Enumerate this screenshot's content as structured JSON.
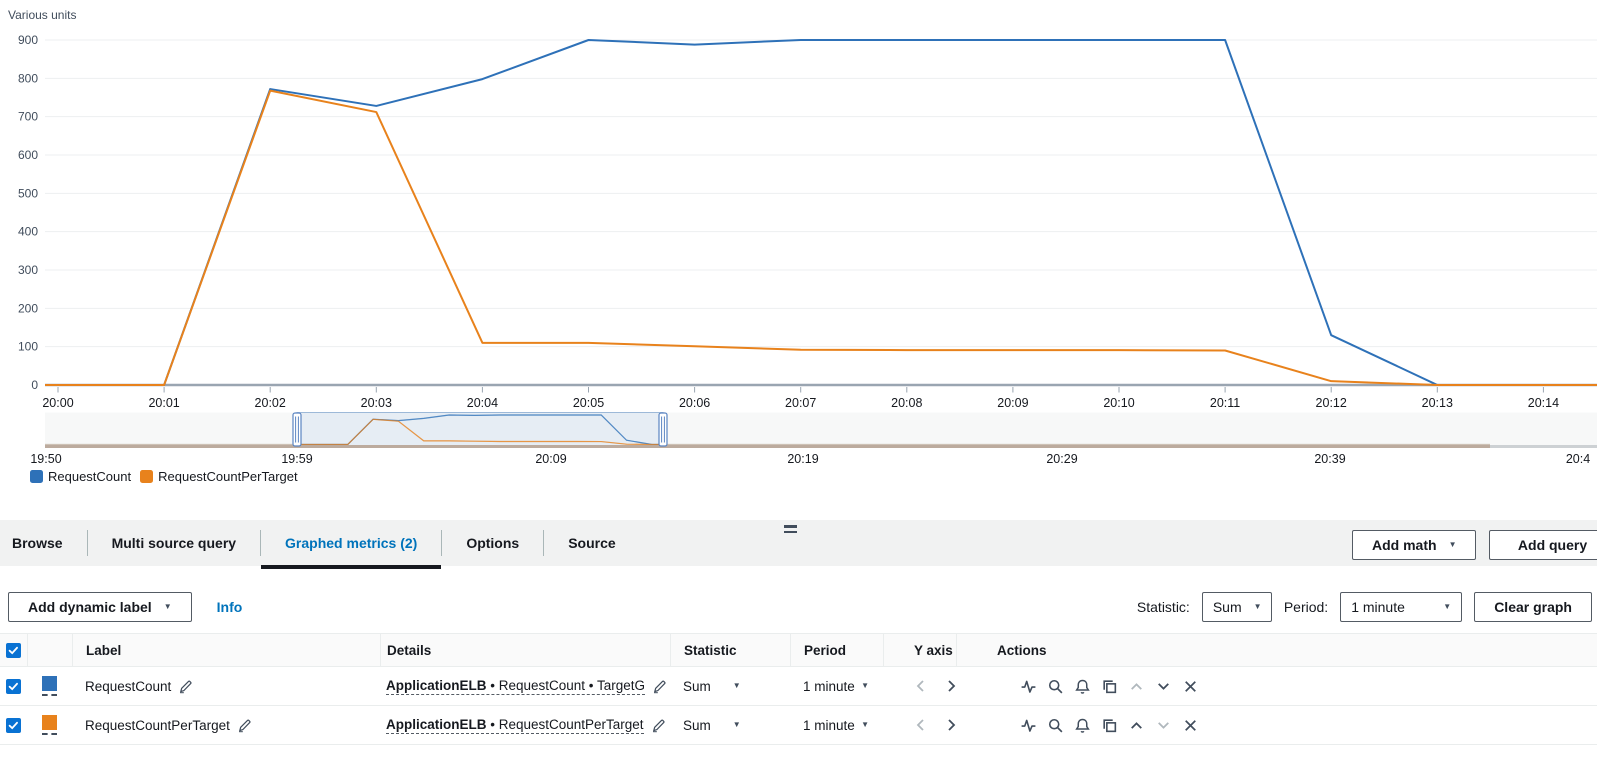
{
  "chart": {
    "units_label": "Various units"
  },
  "chart_data": {
    "type": "line",
    "title": "",
    "xlabel": "",
    "ylabel": "Various units",
    "ylim": [
      0,
      950
    ],
    "grid": true,
    "legend_position": "bottom",
    "x_labels": [
      "20:00",
      "20:01",
      "20:02",
      "20:03",
      "20:04",
      "20:05",
      "20:06",
      "20:07",
      "20:08",
      "20:09",
      "20:10",
      "20:11",
      "20:12",
      "20:13",
      "20:14"
    ],
    "y_ticks": [
      0,
      100,
      200,
      300,
      400,
      500,
      600,
      700,
      800,
      900
    ],
    "series": [
      {
        "name": "RequestCount",
        "color": "#2e71b8",
        "values": [
          0,
          0,
          772,
          728,
          798,
          900,
          888,
          900,
          900,
          900,
          900,
          900,
          130,
          0,
          0
        ]
      },
      {
        "name": "RequestCountPerTarget",
        "color": "#e8821c",
        "values": [
          0,
          0,
          768,
          712,
          110,
          110,
          101,
          92,
          91,
          91,
          91,
          90,
          10,
          0,
          0
        ]
      }
    ],
    "brush": {
      "labels": [
        "19:50",
        "19:59",
        "20:09",
        "20:19",
        "20:29",
        "20:39",
        "20:4"
      ],
      "selection_start": "19:59",
      "selection_end": "20:13"
    }
  },
  "icons": {
    "caret_down": "▼"
  },
  "panel": {
    "tabs": [
      {
        "label": "Browse",
        "active": false
      },
      {
        "label": "Multi source query",
        "active": false
      },
      {
        "label": "Graphed metrics (2)",
        "active": true
      },
      {
        "label": "Options",
        "active": false
      },
      {
        "label": "Source",
        "active": false
      }
    ],
    "add_math_label": "Add math",
    "add_query_label": "Add query"
  },
  "toolbar": {
    "add_dynamic_label": "Add dynamic label",
    "info_label": "Info",
    "statistic_label": "Statistic:",
    "statistic_value": "Sum",
    "period_label": "Period:",
    "period_value": "1 minute",
    "clear_graph_label": "Clear graph"
  },
  "table": {
    "columns": [
      "Label",
      "Details",
      "Statistic",
      "Period",
      "Y axis",
      "Actions"
    ],
    "rows": [
      {
        "label": "RequestCount",
        "details_bold": "ApplicationELB",
        "details_rest": " • RequestCount • TargetG",
        "statistic": "Sum",
        "period": "1 minute"
      },
      {
        "label": "RequestCountPerTarget",
        "details_bold": "ApplicationELB",
        "details_rest": " • RequestCountPerTarget",
        "statistic": "Sum",
        "period": "1 minute"
      }
    ]
  }
}
